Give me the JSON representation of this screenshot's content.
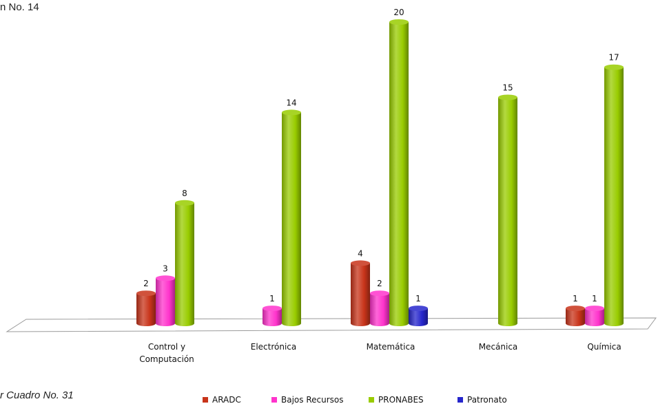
{
  "header": {
    "caption": "n No. 14"
  },
  "footer": {
    "source": "r Cuadro No. 31"
  },
  "colors": {
    "ARADC": "#c8341a",
    "Bajos Recursos": "#ff33cc",
    "PRONABES": "#99cc00",
    "Patronato": "#2626cc"
  },
  "chart_data": {
    "type": "bar",
    "categories": [
      "Control y Computación",
      "Electrónica",
      "Matemática",
      "Mecánica",
      "Química"
    ],
    "category_lines": [
      [
        "Control y",
        "Computación"
      ],
      [
        "Electrónica"
      ],
      [
        "Matemática"
      ],
      [
        "Mecánica"
      ],
      [
        "Química"
      ]
    ],
    "series": [
      {
        "name": "ARADC",
        "values": [
          2,
          0,
          4,
          0,
          1
        ]
      },
      {
        "name": "Bajos Recursos",
        "values": [
          3,
          1,
          2,
          0,
          1
        ]
      },
      {
        "name": "PRONABES",
        "values": [
          8,
          14,
          20,
          15,
          17
        ]
      },
      {
        "name": "Patronato",
        "values": [
          0,
          0,
          1,
          0,
          0
        ]
      }
    ],
    "legend": [
      "ARADC",
      "Bajos Recursos",
      "PRONABES",
      "Patronato"
    ],
    "legend_position": "bottom",
    "grid": false,
    "ylim": [
      0,
      20
    ]
  }
}
